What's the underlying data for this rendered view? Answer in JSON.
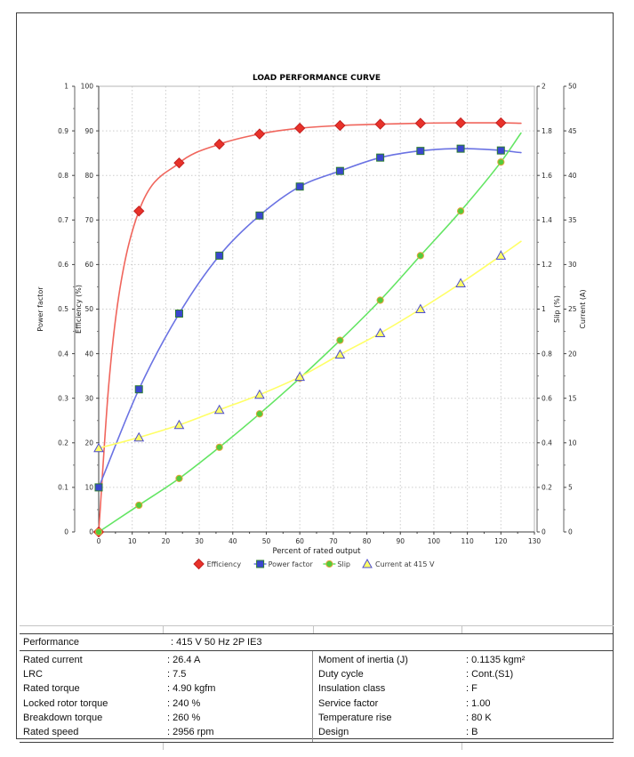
{
  "chart_data": {
    "type": "line",
    "title": "LOAD PERFORMANCE CURVE",
    "xlabel": "Percent of rated output",
    "x_range": [
      0,
      130
    ],
    "x_tick_step": 10,
    "x_minor_step": 5,
    "grid": true,
    "legend_position": "bottom",
    "x": [
      0,
      12,
      24,
      36,
      48,
      60,
      72,
      84,
      96,
      108,
      120
    ],
    "axes": [
      {
        "id": "pf",
        "title": "Power factor",
        "min": 0,
        "max": 1,
        "tick_step": 0.1
      },
      {
        "id": "eff",
        "title": "Efficiency (%)",
        "min": 0,
        "max": 100,
        "tick_step": 10
      },
      {
        "id": "slip",
        "title": "Slip (%)",
        "min": 0,
        "max": 2,
        "tick_step": 0.2
      },
      {
        "id": "cur",
        "title": "Current (A)",
        "min": 0,
        "max": 50,
        "tick_step": 5
      }
    ],
    "series": [
      {
        "name": "Efficiency",
        "axis": "eff",
        "marker": "diamond",
        "line_color": "#f0655c",
        "marker_fill": "#e8322a",
        "marker_stroke": "#c42020",
        "values": [
          0,
          72,
          82.8,
          87,
          89.3,
          90.6,
          91.2,
          91.5,
          91.7,
          91.8,
          91.8
        ],
        "curve_hints": [
          [
            3,
            33
          ],
          [
            6,
            53
          ]
        ],
        "extension": [
          126,
          91.7
        ]
      },
      {
        "name": "Power factor",
        "axis": "pf",
        "marker": "square",
        "line_color": "#6a72e3",
        "marker_fill": "#3a46cf",
        "marker_stroke": "#2e7d32",
        "values": [
          0.1,
          0.32,
          0.49,
          0.62,
          0.71,
          0.775,
          0.81,
          0.84,
          0.855,
          0.86,
          0.856
        ],
        "extension": [
          126,
          0.851
        ]
      },
      {
        "name": "Slip",
        "axis": "slip",
        "marker": "circle",
        "line_color": "#63e563",
        "marker_fill": "#53cb3b",
        "marker_stroke": "#e5a33b",
        "values": [
          0,
          0.12,
          0.24,
          0.38,
          0.53,
          0.69,
          0.86,
          1.04,
          1.24,
          1.44,
          1.66
        ],
        "extension": [
          126,
          1.79
        ]
      },
      {
        "name": "Current at 415 V",
        "axis": "cur",
        "marker": "triangle",
        "line_color": "#ffff66",
        "marker_fill": "#ffff66",
        "marker_stroke": "#4d4dd0",
        "values": [
          9.4,
          10.6,
          12.0,
          13.7,
          15.4,
          17.4,
          19.9,
          22.3,
          25.0,
          27.9,
          31.0
        ],
        "extension": [
          126,
          32.6
        ]
      }
    ]
  },
  "table": {
    "header": {
      "label": "Performance",
      "value": ": 415 V 50 Hz 2P IE3"
    },
    "left_rows": [
      {
        "label": "Rated current",
        "value": ": 26.4 A"
      },
      {
        "label": "LRC",
        "value": ": 7.5"
      },
      {
        "label": "Rated torque",
        "value": ": 4.90 kgfm"
      },
      {
        "label": "Locked rotor torque",
        "value": ": 240 %"
      },
      {
        "label": "Breakdown torque",
        "value": ": 260 %"
      },
      {
        "label": "Rated speed",
        "value": ": 2956 rpm"
      }
    ],
    "right_rows": [
      {
        "label": "Moment of inertia (J)",
        "value": ": 0.1135 kgm²"
      },
      {
        "label": "Duty cycle",
        "value": ": Cont.(S1)"
      },
      {
        "label": "Insulation class",
        "value": ": F"
      },
      {
        "label": "Service factor",
        "value": ": 1.00"
      },
      {
        "label": "Temperature rise",
        "value": ": 80 K"
      },
      {
        "label": "Design",
        "value": ": B"
      }
    ]
  },
  "colors": {
    "page_border": "#3f3f3f",
    "grid": "#cccccc",
    "axis": "#3c3c3c",
    "text": "#222222"
  }
}
